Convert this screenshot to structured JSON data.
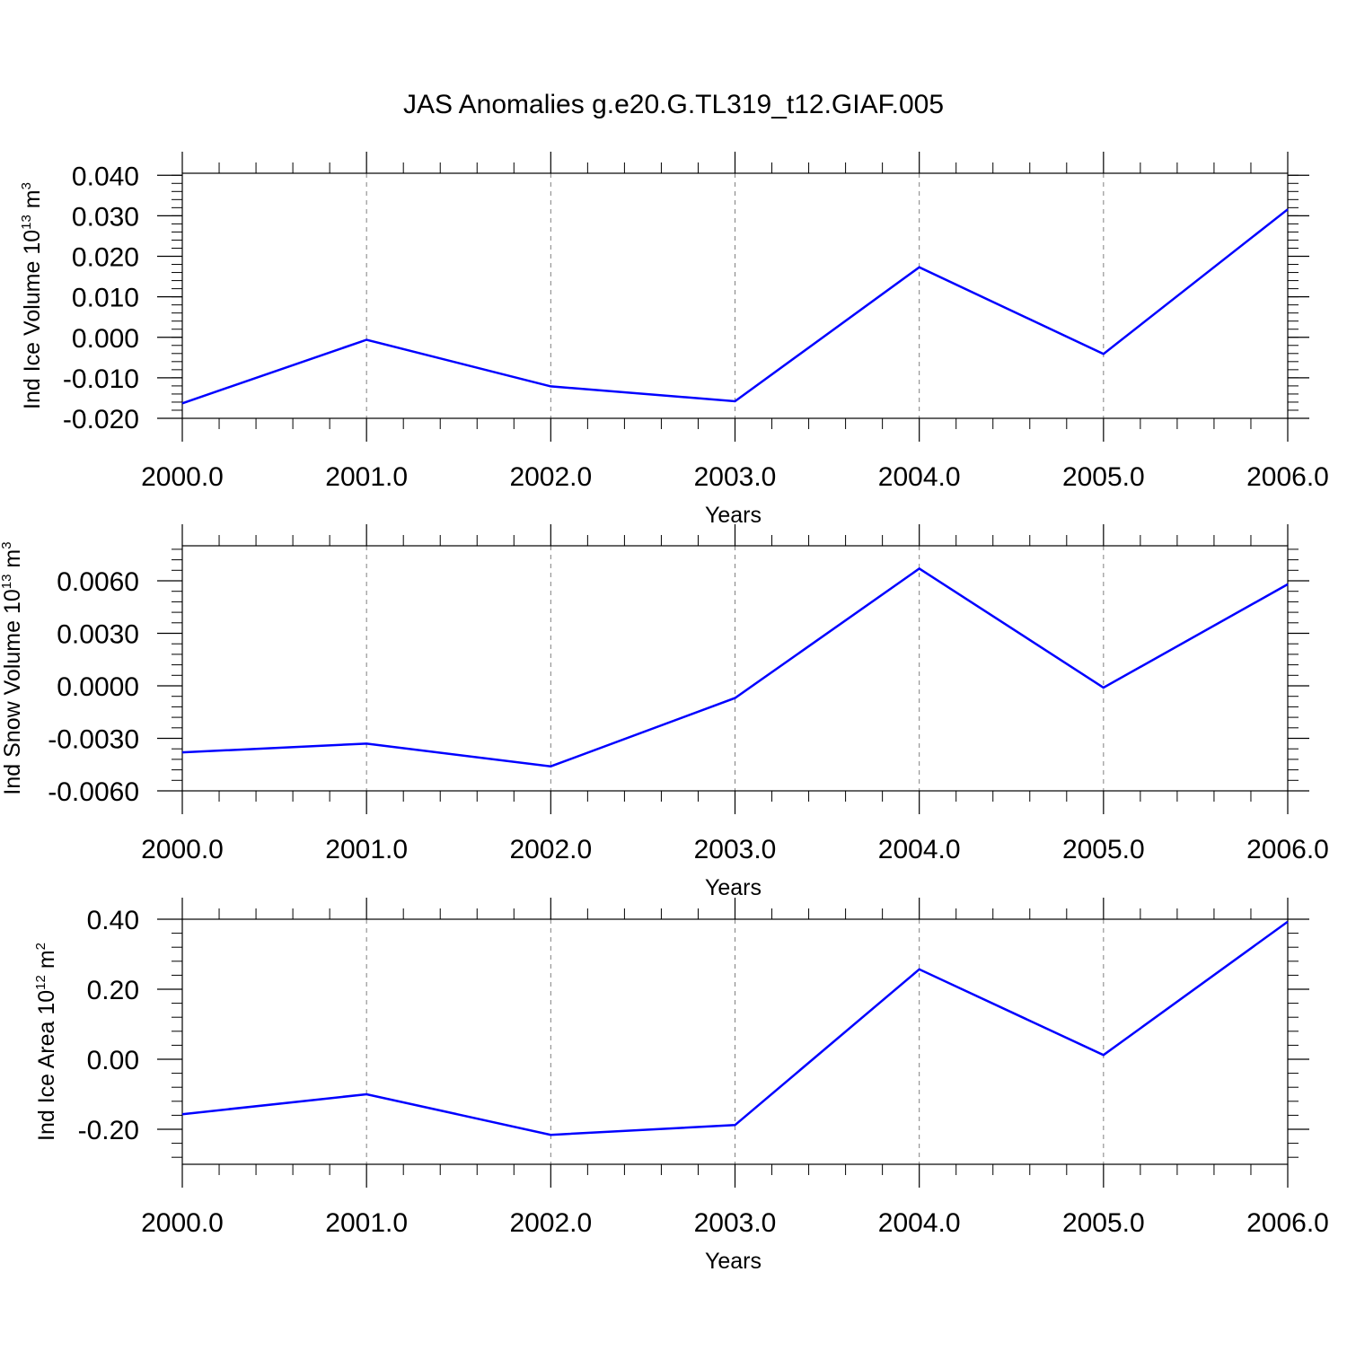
{
  "figure_title": "JAS Anomalies g.e20.G.TL319_t12.GIAF.005",
  "colors": {
    "line": "#0000ff",
    "axis": "#000000",
    "grid": "#808080"
  },
  "chart_data": [
    {
      "type": "line",
      "title": "",
      "xlabel": "Years",
      "ylabel_main": "Ind Ice Volume 10",
      "ylabel_sup": "13",
      "ylabel_unit": " m",
      "ylabel_unit_sup": "3",
      "xlim": [
        2000,
        2006
      ],
      "ylim": [
        -0.02,
        0.0405
      ],
      "xticks": [
        2000,
        2001,
        2002,
        2003,
        2004,
        2005,
        2006
      ],
      "xtick_labels": [
        "2000.0",
        "2001.0",
        "2002.0",
        "2003.0",
        "2004.0",
        "2005.0",
        "2006.0"
      ],
      "yticks": [
        -0.02,
        -0.01,
        0.0,
        0.01,
        0.02,
        0.03,
        0.04
      ],
      "ytick_labels": [
        "-0.020",
        "-0.010",
        "0.000",
        "0.010",
        "0.020",
        "0.030",
        "0.040"
      ],
      "yminor_step": 0.002,
      "grid": "x-dashed",
      "series": [
        {
          "name": "Ind Ice Volume",
          "x": [
            2000,
            2001,
            2002,
            2003,
            2004,
            2005,
            2006
          ],
          "values": [
            -0.0163,
            -0.0006,
            -0.0121,
            -0.0158,
            0.0173,
            -0.0041,
            0.0316
          ]
        }
      ]
    },
    {
      "type": "line",
      "title": "",
      "xlabel": "Years",
      "ylabel_main": "Ind Snow Volume 10",
      "ylabel_sup": "13",
      "ylabel_unit": " m",
      "ylabel_unit_sup": "3",
      "xlim": [
        2000,
        2006
      ],
      "ylim": [
        -0.006,
        0.008
      ],
      "xticks": [
        2000,
        2001,
        2002,
        2003,
        2004,
        2005,
        2006
      ],
      "xtick_labels": [
        "2000.0",
        "2001.0",
        "2002.0",
        "2003.0",
        "2004.0",
        "2005.0",
        "2006.0"
      ],
      "yticks": [
        -0.006,
        -0.003,
        0.0,
        0.003,
        0.006
      ],
      "ytick_labels": [
        "-0.0060",
        "-0.0030",
        "0.0000",
        "0.0030",
        "0.0060"
      ],
      "yminor_step": 0.0006,
      "grid": "x-dashed",
      "series": [
        {
          "name": "Ind Snow Volume",
          "x": [
            2000,
            2001,
            2002,
            2003,
            2004,
            2005,
            2006
          ],
          "values": [
            -0.0038,
            -0.0033,
            -0.0046,
            -0.0007,
            0.0067,
            -0.0001,
            0.0058
          ]
        }
      ]
    },
    {
      "type": "line",
      "title": "",
      "xlabel": "Years",
      "ylabel_main": "Ind Ice Area 10",
      "ylabel_sup": "12",
      "ylabel_unit": " m",
      "ylabel_unit_sup": "2",
      "xlim": [
        2000,
        2006
      ],
      "ylim": [
        -0.3,
        0.4
      ],
      "xticks": [
        2000,
        2001,
        2002,
        2003,
        2004,
        2005,
        2006
      ],
      "xtick_labels": [
        "2000.0",
        "2001.0",
        "2002.0",
        "2003.0",
        "2004.0",
        "2005.0",
        "2006.0"
      ],
      "yticks": [
        -0.2,
        0.0,
        0.2,
        0.4
      ],
      "ytick_labels": [
        "-0.20",
        "0.00",
        "0.20",
        "0.40"
      ],
      "yminor_step": 0.04,
      "grid": "x-dashed",
      "series": [
        {
          "name": "Ind Ice Area",
          "x": [
            2000,
            2001,
            2002,
            2003,
            2004,
            2005,
            2006
          ],
          "values": [
            -0.157,
            -0.1,
            -0.216,
            -0.188,
            0.257,
            0.012,
            0.393
          ]
        }
      ]
    }
  ]
}
